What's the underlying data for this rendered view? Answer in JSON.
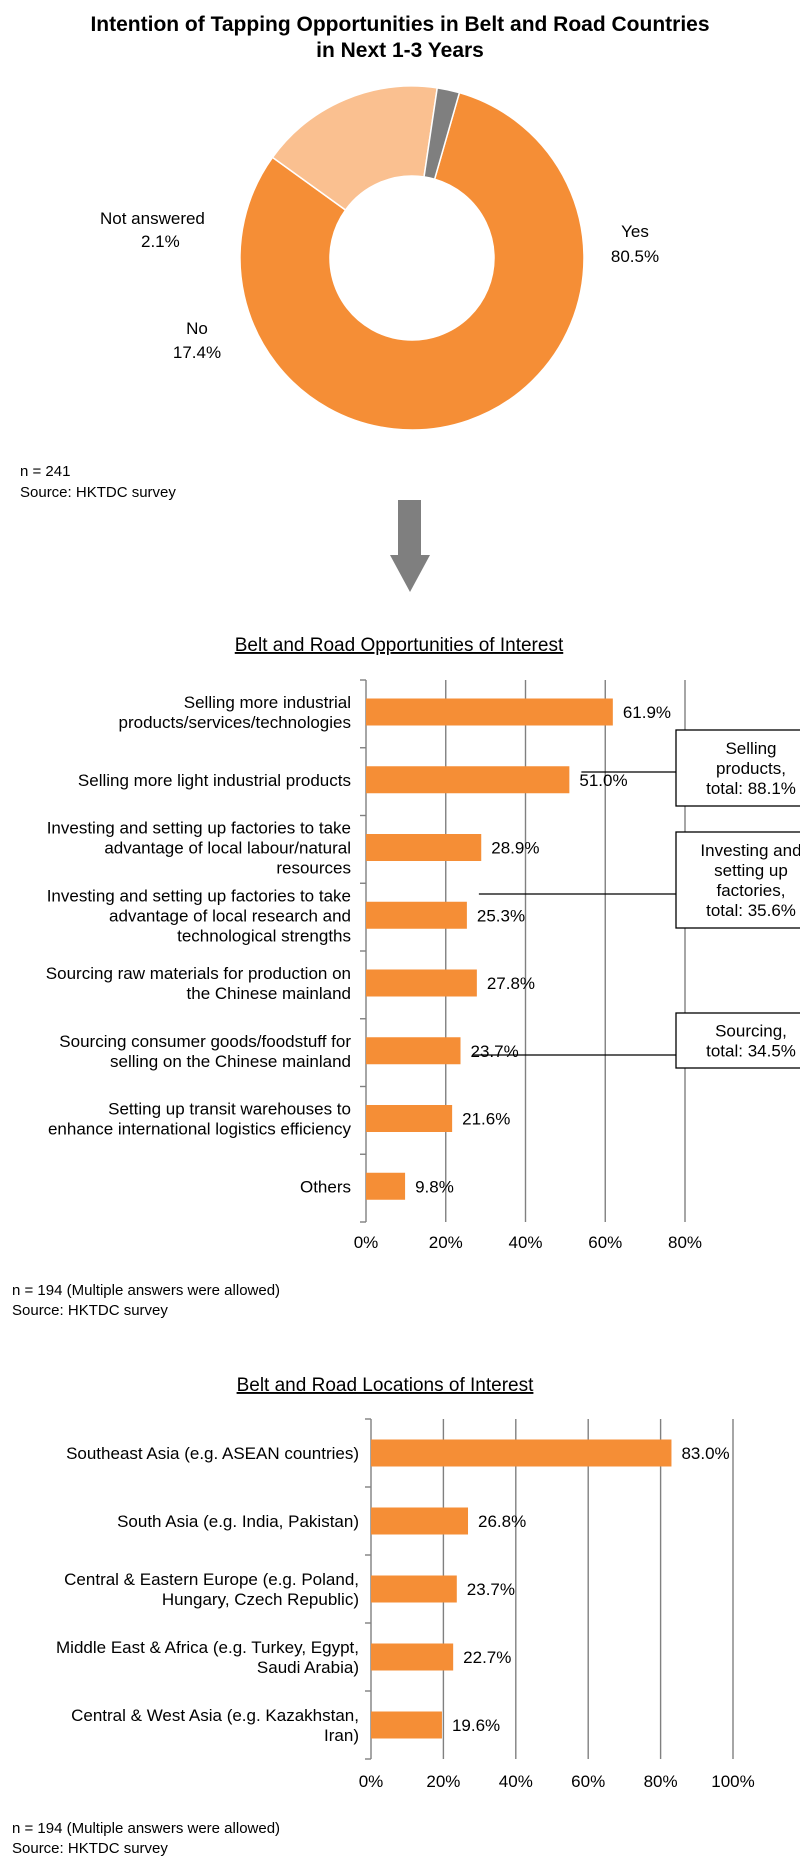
{
  "chart_data": [
    {
      "type": "pie",
      "title": [
        "Intention of Tapping Opportunities in Belt and Road Countries",
        "in Next 1-3 Years"
      ],
      "slices": [
        {
          "label": "Yes",
          "value": 80.5,
          "value_label": "80.5%",
          "color": "#f58e36"
        },
        {
          "label": "No",
          "value": 17.4,
          "value_label": "17.4%",
          "color": "#fac090"
        },
        {
          "label": "Not answered",
          "value": 2.1,
          "value_label": "2.1%",
          "color": "#7f7f7f"
        }
      ],
      "donut": true,
      "notes": [
        "n = 241",
        "Source: HKTDC survey"
      ]
    },
    {
      "type": "bar",
      "orientation": "horizontal",
      "title": "Belt and Road Opportunities of Interest",
      "categories": [
        [
          "Selling more industrial",
          "products/services/technologies"
        ],
        [
          "Selling more light industrial products"
        ],
        [
          "Investing and setting up factories to take",
          "advantage of local labour/natural",
          "resources"
        ],
        [
          "Investing and setting up factories to take",
          "advantage of local research and",
          "technological strengths"
        ],
        [
          "Sourcing raw materials for production on",
          "the Chinese mainland"
        ],
        [
          "Sourcing consumer goods/foodstuff for",
          "selling on the Chinese mainland"
        ],
        [
          "Setting up transit warehouses to",
          "enhance international logistics efficiency"
        ],
        [
          "Others"
        ]
      ],
      "values": [
        61.9,
        51.0,
        28.9,
        25.3,
        27.8,
        23.7,
        21.6,
        9.8
      ],
      "value_labels": [
        "61.9%",
        "51.0%",
        "28.9%",
        "25.3%",
        "27.8%",
        "23.7%",
        "21.6%",
        "9.8%"
      ],
      "xlim": [
        0,
        80
      ],
      "xticks": [
        "0%",
        "20%",
        "40%",
        "60%",
        "80%"
      ],
      "grid": true,
      "color": "#f58e36",
      "callouts": [
        {
          "lines": [
            "Selling",
            "products,",
            "total: 88.1%"
          ]
        },
        {
          "lines": [
            "Investing and",
            "setting up",
            "factories,",
            "total: 35.6%"
          ]
        },
        {
          "lines": [
            "Sourcing,",
            "total: 34.5%"
          ]
        }
      ],
      "notes": [
        "n = 194 (Multiple answers were allowed)",
        "Source: HKTDC survey"
      ]
    },
    {
      "type": "bar",
      "orientation": "horizontal",
      "title": "Belt and Road Locations of Interest",
      "categories": [
        [
          "Southeast Asia (e.g. ASEAN countries)"
        ],
        [
          "South Asia (e.g. India, Pakistan)"
        ],
        [
          "Central & Eastern Europe (e.g. Poland,",
          "Hungary, Czech Republic)"
        ],
        [
          "Middle East & Africa (e.g. Turkey, Egypt,",
          "Saudi Arabia)"
        ],
        [
          "Central & West Asia (e.g. Kazakhstan,",
          "Iran)"
        ]
      ],
      "values": [
        83.0,
        26.8,
        23.7,
        22.7,
        19.6
      ],
      "value_labels": [
        "83.0%",
        "26.8%",
        "23.7%",
        "22.7%",
        "19.6%"
      ],
      "xlim": [
        0,
        100
      ],
      "xticks": [
        "0%",
        "20%",
        "40%",
        "60%",
        "80%",
        "100%"
      ],
      "grid": true,
      "color": "#f58e36",
      "notes": [
        "n = 194 (Multiple answers were allowed)",
        "Source: HKTDC survey"
      ]
    }
  ],
  "decorations": {
    "arrow_icon": "down-arrow",
    "arrow_color": "#7f7f7f"
  }
}
